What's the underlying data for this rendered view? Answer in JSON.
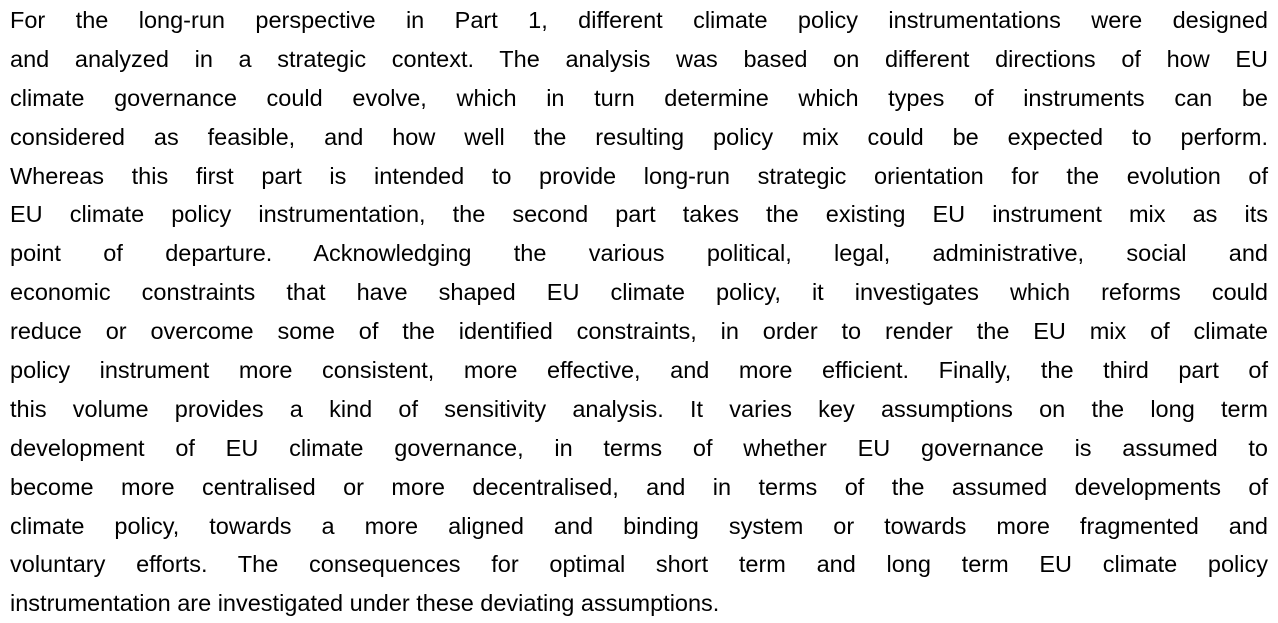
{
  "paragraph": {
    "lines": [
      "For the long-run perspective in Part 1, different climate policy instrumentations were designed",
      "and analyzed in a strategic context. The analysis was based on different directions of how EU",
      "climate governance could evolve, which in turn determine which types of instruments can be",
      "considered as feasible, and how well the resulting policy mix could be expected to perform.",
      "Whereas this first part is intended to provide long-run strategic orientation for the evolution of",
      "EU climate policy instrumentation, the second part takes the existing EU instrument mix as its",
      "point of departure. Acknowledging the various political, legal, administrative, social and",
      "economic constraints that have shaped EU climate policy, it investigates which reforms could",
      "reduce or overcome some of the identified constraints, in order to render the EU mix of climate",
      "policy instrument more consistent, more effective, and more efficient. Finally, the third part of",
      "this volume provides a kind of sensitivity analysis. It varies key assumptions on the long term",
      "development of EU climate governance, in terms of whether EU governance is assumed to",
      "become more centralised or more decentralised, and in terms of the assumed developments of",
      "climate policy, towards a more aligned and binding system or towards more fragmented and",
      "voluntary efforts. The consequences for optimal short term and long term EU climate policy",
      "instrumentation are investigated under these deviating assumptions."
    ]
  }
}
